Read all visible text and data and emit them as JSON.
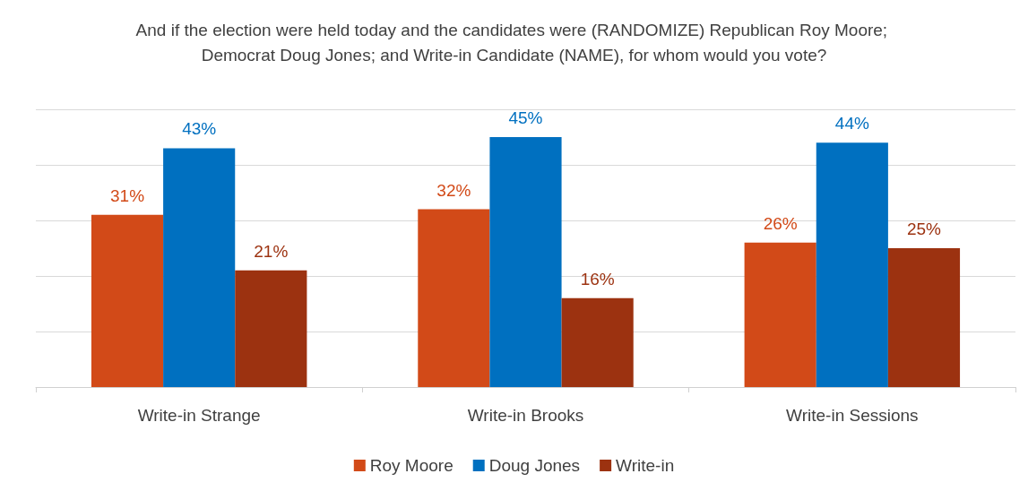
{
  "chart_data": {
    "type": "bar",
    "title": "And if the election were held today and the candidates were (RANDOMIZE) Republican Roy Moore; Democrat Doug Jones; and Write-in Candidate (NAME), for whom would you vote?",
    "categories": [
      "Write-in Strange",
      "Write-in Brooks",
      "Write-in Sessions"
    ],
    "series": [
      {
        "name": "Roy Moore",
        "color": "#d24a18",
        "values": [
          31,
          32,
          26
        ],
        "value_labels": [
          "31%",
          "32%",
          "26%"
        ]
      },
      {
        "name": "Doug Jones",
        "color": "#0070c0",
        "values": [
          43,
          45,
          44
        ],
        "value_labels": [
          "43%",
          "45%",
          "44%"
        ]
      },
      {
        "name": "Write-in",
        "color": "#9c3210",
        "values": [
          21,
          16,
          25
        ],
        "value_labels": [
          "21%",
          "16%",
          "25%"
        ]
      }
    ],
    "ylim": [
      0,
      50
    ],
    "yticks": [
      {
        "value": 0,
        "label": null
      },
      {
        "value": 10,
        "label": null
      },
      {
        "value": 20,
        "label": null
      },
      {
        "value": 30,
        "label": null
      },
      {
        "value": 40,
        "label": null
      },
      {
        "value": 50,
        "label": null
      }
    ],
    "grid": "y",
    "legend": "bottom",
    "tick_labels": "x"
  }
}
